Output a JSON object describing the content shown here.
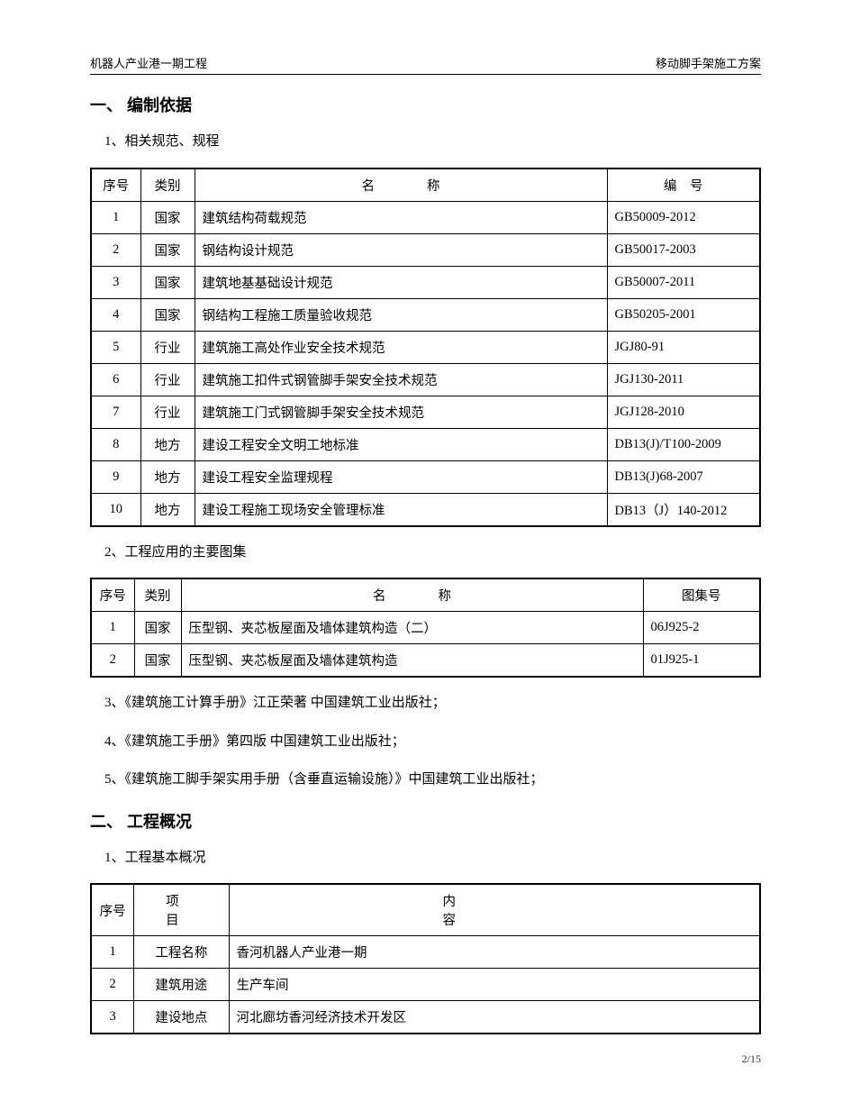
{
  "header": {
    "left": "机器人产业港一期工程",
    "right": "移动脚手架施工方案"
  },
  "section1": {
    "title": "一、 编制依据",
    "sub1": "1、相关规范、规程",
    "table1": {
      "headers": {
        "num": "序号",
        "cat": "类别",
        "name": "名　　　　称",
        "code": "编　号"
      },
      "rows": [
        {
          "num": "1",
          "cat": "国家",
          "name": "建筑结构荷载规范",
          "code": "GB50009-2012"
        },
        {
          "num": "2",
          "cat": "国家",
          "name": "钢结构设计规范",
          "code": "GB50017-2003"
        },
        {
          "num": "3",
          "cat": "国家",
          "name": "建筑地基基础设计规范",
          "code": "GB50007-2011"
        },
        {
          "num": "4",
          "cat": "国家",
          "name": "钢结构工程施工质量验收规范",
          "code": "GB50205-2001"
        },
        {
          "num": "5",
          "cat": "行业",
          "name": "建筑施工高处作业安全技术规范",
          "code": "JGJ80-91"
        },
        {
          "num": "6",
          "cat": "行业",
          "name": "建筑施工扣件式钢管脚手架安全技术规范",
          "code": "JGJ130-2011"
        },
        {
          "num": "7",
          "cat": "行业",
          "name": "建筑施工门式钢管脚手架安全技术规范",
          "code": "JGJ128-2010"
        },
        {
          "num": "8",
          "cat": "地方",
          "name": "建设工程安全文明工地标准",
          "code": "DB13(J)/T100-2009"
        },
        {
          "num": "9",
          "cat": "地方",
          "name": "建设工程安全监理规程",
          "code": "DB13(J)68-2007"
        },
        {
          "num": "10",
          "cat": "地方",
          "name": "建设工程施工现场安全管理标准",
          "code": "DB13（J）140-2012"
        }
      ]
    },
    "sub2": "2、工程应用的主要图集",
    "table2": {
      "headers": {
        "num": "序号",
        "cat": "类别",
        "name": "名　　　　称",
        "code": "图集号"
      },
      "rows": [
        {
          "num": "1",
          "cat": "国家",
          "name": "压型钢、夹芯板屋面及墙体建筑构造（二）",
          "code": "06J925-2"
        },
        {
          "num": "2",
          "cat": "国家",
          "name": "压型钢、夹芯板屋面及墙体建筑构造",
          "code": "01J925-1"
        }
      ]
    },
    "sub3": "3、《建筑施工计算手册》江正荣著 中国建筑工业出版社；",
    "sub4": "4、《建筑施工手册》第四版 中国建筑工业出版社；",
    "sub5": "5、《建筑施工脚手架实用手册（含垂直运输设施）》中国建筑工业出版社；"
  },
  "section2": {
    "title": "二、 工程概况",
    "sub1": "1、工程基本概况",
    "table3": {
      "headers": {
        "num": "序号",
        "proj": "项　目",
        "content": "内　　　　容"
      },
      "rows": [
        {
          "num": "1",
          "proj": "工程名称",
          "content": "香河机器人产业港一期"
        },
        {
          "num": "2",
          "proj": "建筑用途",
          "content": "生产车间"
        },
        {
          "num": "3",
          "proj": "建设地点",
          "content": "河北廊坊香河经济技术开发区"
        }
      ]
    }
  },
  "footer": "2/15"
}
